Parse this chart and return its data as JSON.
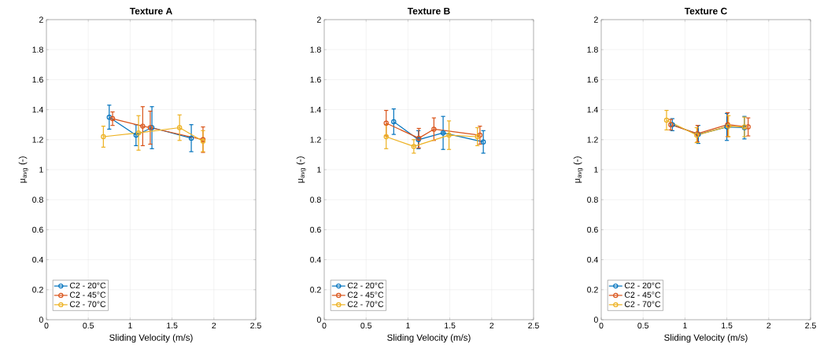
{
  "chart_data": [
    {
      "type": "line",
      "title": "Texture A",
      "xlabel": "Sliding Velocity (m/s)",
      "ylabel": "μ$_{avg}$ (-)",
      "xlim": [
        0,
        2.5
      ],
      "xticks": [
        0,
        0.5,
        1,
        1.5,
        2,
        2.5
      ],
      "ylim": [
        0,
        2
      ],
      "yticks": [
        0,
        0.2,
        0.4,
        0.6,
        0.8,
        1,
        1.2,
        1.4,
        1.6,
        1.8,
        2
      ],
      "grid": true,
      "legend": "bottom left",
      "marker": "circle",
      "line_style": "solid",
      "series": [
        {
          "name": "C2 - 20°C",
          "color": "#0072bd",
          "x": [
            0.75,
            1.07,
            1.26,
            1.73
          ],
          "values": [
            1.35,
            1.23,
            1.28,
            1.21
          ],
          "errors": [
            0.08,
            0.07,
            0.14,
            0.09
          ]
        },
        {
          "name": "C2 - 45°C",
          "color": "#d95319",
          "x": [
            0.79,
            1.15,
            1.24,
            1.87
          ],
          "values": [
            1.34,
            1.29,
            1.28,
            1.2
          ],
          "errors": [
            0.045,
            0.13,
            0.11,
            0.085
          ]
        },
        {
          "name": "C2 - 70°C",
          "color": "#edb120",
          "x": [
            0.68,
            1.1,
            1.59,
            1.87
          ],
          "values": [
            1.22,
            1.245,
            1.28,
            1.19
          ],
          "errors": [
            0.07,
            0.115,
            0.085,
            0.07
          ]
        }
      ]
    },
    {
      "type": "line",
      "title": "Texture B",
      "xlabel": "Sliding Velocity (m/s)",
      "ylabel": "μ$_{avg}$ (-)",
      "xlim": [
        0,
        2.5
      ],
      "xticks": [
        0,
        0.5,
        1,
        1.5,
        2,
        2.5
      ],
      "ylim": [
        0,
        2
      ],
      "yticks": [
        0,
        0.2,
        0.4,
        0.6,
        0.8,
        1,
        1.2,
        1.4,
        1.6,
        1.8,
        2
      ],
      "grid": true,
      "legend": "bottom left",
      "marker": "circle",
      "line_style": "solid",
      "series": [
        {
          "name": "C2 - 20°C",
          "color": "#0072bd",
          "x": [
            0.83,
            1.125,
            1.42,
            1.9
          ],
          "values": [
            1.32,
            1.2,
            1.245,
            1.185
          ],
          "errors": [
            0.085,
            0.06,
            0.11,
            0.075
          ]
        },
        {
          "name": "C2 - 45°C",
          "color": "#d95319",
          "x": [
            0.74,
            1.13,
            1.31,
            1.86
          ],
          "values": [
            1.31,
            1.21,
            1.27,
            1.23
          ],
          "errors": [
            0.085,
            0.065,
            0.075,
            0.06
          ]
        },
        {
          "name": "C2 - 70°C",
          "color": "#edb120",
          "x": [
            0.74,
            1.07,
            1.49,
            1.83
          ],
          "values": [
            1.22,
            1.155,
            1.23,
            1.22
          ],
          "errors": [
            0.08,
            0.045,
            0.095,
            0.06
          ]
        }
      ]
    },
    {
      "type": "line",
      "title": "Texture C",
      "xlabel": "Sliding Velocity (m/s)",
      "ylabel": "μ$_{avg}$ (-)",
      "xlim": [
        0,
        2.5
      ],
      "xticks": [
        0,
        0.5,
        1,
        1.5,
        2,
        2.5
      ],
      "ylim": [
        0,
        2
      ],
      "yticks": [
        0,
        0.2,
        0.4,
        0.6,
        0.8,
        1,
        1.2,
        1.4,
        1.6,
        1.8,
        2
      ],
      "grid": true,
      "legend": "bottom left",
      "marker": "circle",
      "line_style": "solid",
      "series": [
        {
          "name": "C2 - 20°C",
          "color": "#0072bd",
          "x": [
            0.85,
            1.16,
            1.5,
            1.71
          ],
          "values": [
            1.3,
            1.235,
            1.285,
            1.28
          ],
          "errors": [
            0.04,
            0.06,
            0.09,
            0.075
          ]
        },
        {
          "name": "C2 - 45°C",
          "color": "#d95319",
          "x": [
            0.83,
            1.15,
            1.51,
            1.755
          ],
          "values": [
            1.3,
            1.24,
            1.3,
            1.285
          ],
          "errors": [
            0.035,
            0.055,
            0.08,
            0.06
          ]
        },
        {
          "name": "C2 - 70°C",
          "color": "#edb120",
          "x": [
            0.78,
            1.14,
            1.52,
            1.71
          ],
          "values": [
            1.33,
            1.23,
            1.29,
            1.285
          ],
          "errors": [
            0.065,
            0.05,
            0.07,
            0.065
          ]
        }
      ]
    }
  ]
}
